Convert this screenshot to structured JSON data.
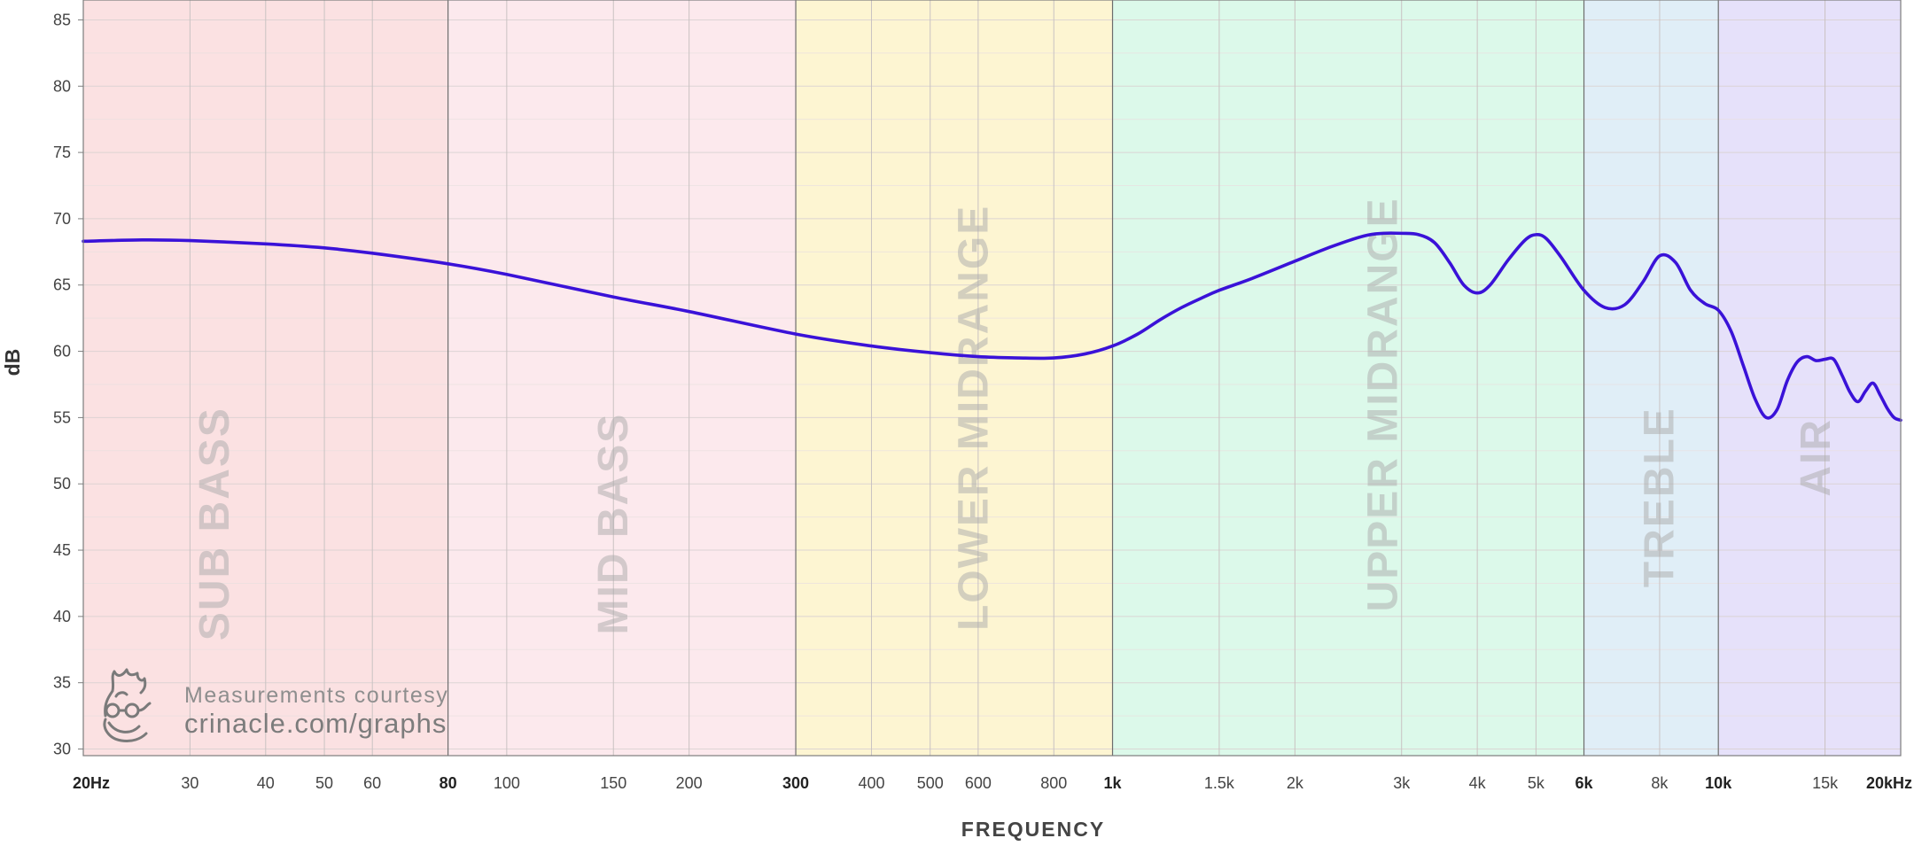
{
  "chart_data": {
    "type": "line",
    "xscale": "log",
    "xlim": [
      20,
      20000
    ],
    "ylim": [
      29.5,
      86.5
    ],
    "ylabel": "dB",
    "xlabel": "FREQUENCY",
    "yticks": [
      30,
      35,
      40,
      45,
      50,
      55,
      60,
      65,
      70,
      75,
      80,
      85
    ],
    "xticks": [
      {
        "value": 20,
        "label": "20Hz",
        "bold": true
      },
      {
        "value": 30,
        "label": "30",
        "bold": false
      },
      {
        "value": 40,
        "label": "40",
        "bold": false
      },
      {
        "value": 50,
        "label": "50",
        "bold": false
      },
      {
        "value": 60,
        "label": "60",
        "bold": false
      },
      {
        "value": 80,
        "label": "80",
        "bold": true
      },
      {
        "value": 100,
        "label": "100",
        "bold": false
      },
      {
        "value": 150,
        "label": "150",
        "bold": false
      },
      {
        "value": 200,
        "label": "200",
        "bold": false
      },
      {
        "value": 300,
        "label": "300",
        "bold": true
      },
      {
        "value": 400,
        "label": "400",
        "bold": false
      },
      {
        "value": 500,
        "label": "500",
        "bold": false
      },
      {
        "value": 600,
        "label": "600",
        "bold": false
      },
      {
        "value": 800,
        "label": "800",
        "bold": false
      },
      {
        "value": 1000,
        "label": "1k",
        "bold": true
      },
      {
        "value": 1500,
        "label": "1.5k",
        "bold": false
      },
      {
        "value": 2000,
        "label": "2k",
        "bold": false
      },
      {
        "value": 3000,
        "label": "3k",
        "bold": false
      },
      {
        "value": 4000,
        "label": "4k",
        "bold": false
      },
      {
        "value": 5000,
        "label": "5k",
        "bold": false
      },
      {
        "value": 6000,
        "label": "6k",
        "bold": true
      },
      {
        "value": 8000,
        "label": "8k",
        "bold": false
      },
      {
        "value": 10000,
        "label": "10k",
        "bold": true
      },
      {
        "value": 15000,
        "label": "15k",
        "bold": false
      },
      {
        "value": 20000,
        "label": "20kHz",
        "bold": true
      }
    ],
    "bands": [
      {
        "name": "SUB BASS",
        "from": 20,
        "to": 80,
        "color": "#fbe1e2",
        "label_at": 33,
        "label_db": 47
      },
      {
        "name": "MID BASS",
        "from": 80,
        "to": 300,
        "color": "#fce9ed",
        "label_at": 150,
        "label_db": 47
      },
      {
        "name": "LOWER MIDRANGE",
        "from": 300,
        "to": 1000,
        "color": "#fdf5d2",
        "label_at": 590,
        "label_db": 55
      },
      {
        "name": "UPPER MIDRANGE",
        "from": 1000,
        "to": 6000,
        "color": "#dcf9ea",
        "label_at": 2800,
        "label_db": 56
      },
      {
        "name": "TREBLE",
        "from": 6000,
        "to": 10000,
        "color": "#e0eef7",
        "label_at": 8000,
        "label_db": 49
      },
      {
        "name": "AIR",
        "from": 10000,
        "to": 20000,
        "color": "#e6e1fa",
        "label_at": 14500,
        "label_db": 52
      }
    ],
    "series": [
      {
        "color": "#3a12d8",
        "x": [
          20,
          25,
          30,
          40,
          50,
          60,
          80,
          100,
          150,
          200,
          300,
          400,
          500,
          600,
          700,
          800,
          900,
          1000,
          1100,
          1200,
          1300,
          1400,
          1500,
          1700,
          2000,
          2300,
          2600,
          2800,
          3000,
          3200,
          3400,
          3600,
          3800,
          4000,
          4200,
          4500,
          4800,
          5000,
          5200,
          5500,
          6000,
          6500,
          7000,
          7500,
          8000,
          8500,
          9000,
          9500,
          10000,
          10500,
          11000,
          11500,
          12000,
          12500,
          13000,
          13500,
          14000,
          14500,
          15000,
          15500,
          16000,
          16500,
          17000,
          17500,
          18000,
          18500,
          19000,
          19500,
          20000
        ],
        "y": [
          68.3,
          68.4,
          68.35,
          68.1,
          67.8,
          67.4,
          66.6,
          65.8,
          64.1,
          63.0,
          61.3,
          60.4,
          59.9,
          59.6,
          59.5,
          59.5,
          59.8,
          60.4,
          61.3,
          62.4,
          63.3,
          64.0,
          64.6,
          65.5,
          66.8,
          67.9,
          68.7,
          68.9,
          68.9,
          68.8,
          68.2,
          66.7,
          65.0,
          64.4,
          65.0,
          66.9,
          68.4,
          68.8,
          68.5,
          67.1,
          64.6,
          63.3,
          63.5,
          65.2,
          67.2,
          66.7,
          64.6,
          63.6,
          63.1,
          61.5,
          58.9,
          56.4,
          55.0,
          55.6,
          57.8,
          59.2,
          59.6,
          59.3,
          59.4,
          59.4,
          58.2,
          56.9,
          56.2,
          57.0,
          57.6,
          56.7,
          55.7,
          55.0,
          54.8
        ]
      }
    ]
  },
  "watermark": {
    "line1": "Measurements courtesy",
    "line2": "crinacle.com/graphs",
    "logo_name": "crinacle-flame-logo"
  }
}
